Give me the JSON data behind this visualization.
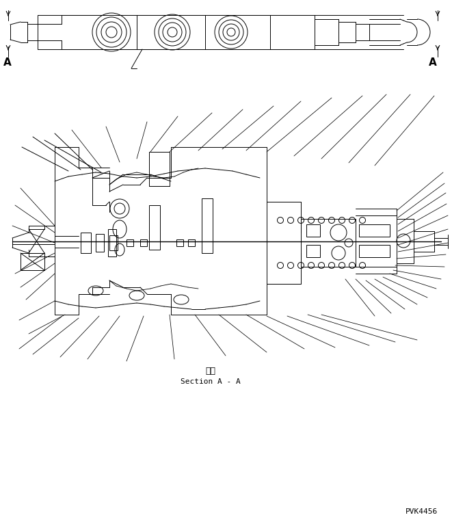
{
  "bg_color": "#ffffff",
  "line_color": "#000000",
  "section_label_jp": "断面",
  "section_label_en": "Section A - A",
  "part_number": "PVK4456",
  "fig_width": 6.8,
  "fig_height": 7.69,
  "dpi": 100
}
